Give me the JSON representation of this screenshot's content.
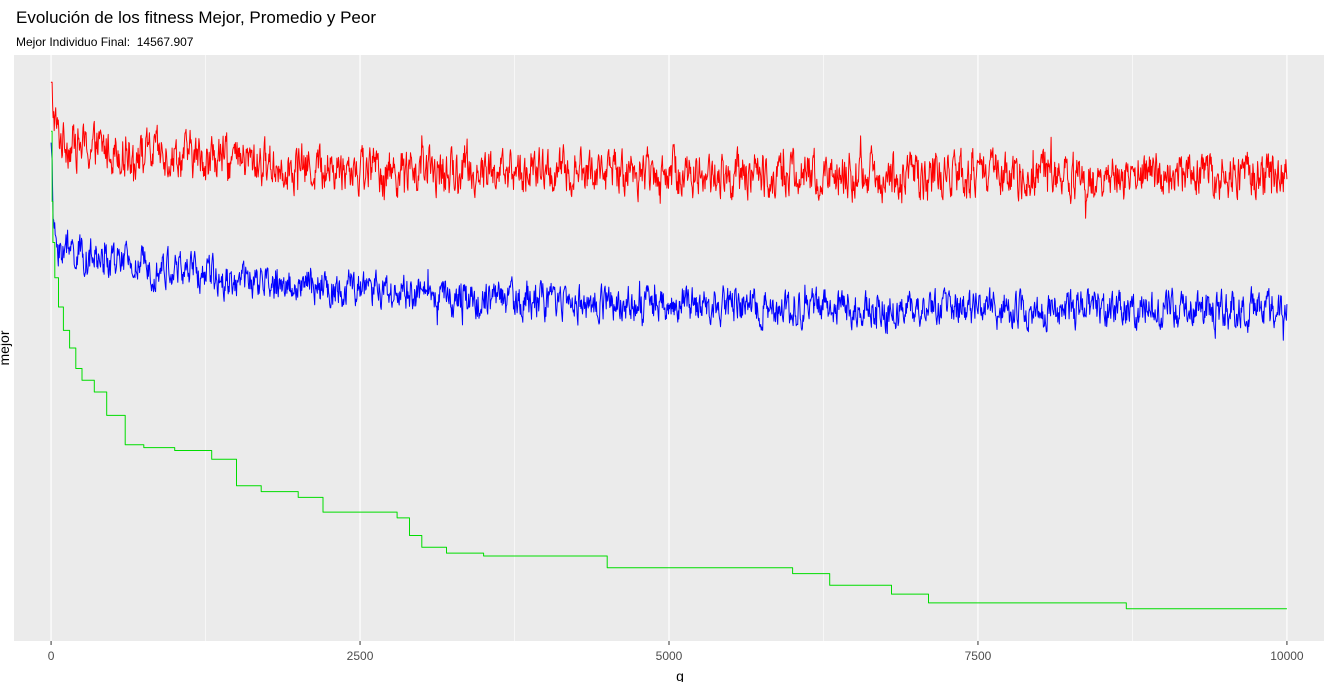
{
  "chart_data": {
    "type": "line",
    "title": "Evolución de los fitness Mejor, Promedio y Peor",
    "subtitle_label": "Mejor Individuo Final:",
    "subtitle_value": "14567.907",
    "xlabel": "g",
    "ylabel": "mejor",
    "xlim": [
      -300,
      10300
    ],
    "x_ticks": [
      0,
      2500,
      5000,
      7500,
      10000
    ],
    "x_tick_labels": [
      "0",
      "2500",
      "5000",
      "7500",
      "10000"
    ],
    "y_tick_labels": [],
    "ylim": [
      0,
      100
    ],
    "grid": true,
    "legend": "none",
    "panel_background": "#ebebeb",
    "series": [
      {
        "color": "#ff0000",
        "x": [
          0,
          20,
          60,
          150,
          300,
          500,
          750,
          1000,
          1500,
          2000,
          2500,
          3000,
          3500,
          4000,
          4500,
          5000,
          5500,
          6000,
          6500,
          7000,
          7500,
          8000,
          8500,
          9000,
          9500,
          10000
        ],
        "values": [
          94,
          90,
          86,
          85,
          84,
          84,
          83,
          83,
          82,
          81,
          80.5,
          80,
          80,
          80,
          80,
          80,
          79.5,
          79.5,
          79.5,
          79.5,
          79.5,
          79.5,
          79.5,
          79.5,
          79.5,
          79.5
        ],
        "noise": 3.0
      },
      {
        "color": "#0000ff",
        "x": [
          0,
          20,
          60,
          150,
          300,
          500,
          750,
          1000,
          1500,
          2000,
          2500,
          3000,
          3500,
          4000,
          4500,
          5000,
          5500,
          6000,
          6500,
          7000,
          7500,
          8000,
          8500,
          9000,
          9500,
          10000
        ],
        "values": [
          87,
          70,
          67,
          66.5,
          65.5,
          64.5,
          64,
          63.5,
          61.5,
          60.5,
          60,
          59,
          58.5,
          58,
          57.5,
          57.5,
          57,
          57,
          56.5,
          56.5,
          56.5,
          56.5,
          56.5,
          56.5,
          56.5,
          56.5
        ],
        "noise": 2.4
      },
      {
        "color": "#00dd00",
        "x": [
          0,
          8,
          15,
          30,
          60,
          100,
          150,
          200,
          250,
          350,
          450,
          600,
          750,
          1000,
          1300,
          1500,
          1700,
          2000,
          2200,
          2800,
          2900,
          3000,
          3200,
          3500,
          4500,
          6000,
          6300,
          6800,
          7100,
          8700,
          10000
        ],
        "values": [
          87,
          75,
          68,
          62,
          57,
          53,
          50,
          46.5,
          44.5,
          42.5,
          38.5,
          33.5,
          33,
          32.5,
          31,
          26.5,
          25.5,
          24.5,
          22,
          21,
          18,
          16,
          15,
          14.5,
          12.5,
          11.5,
          9.5,
          8,
          6.5,
          5.5,
          5.5
        ],
        "step": true,
        "noise": 0
      }
    ]
  }
}
